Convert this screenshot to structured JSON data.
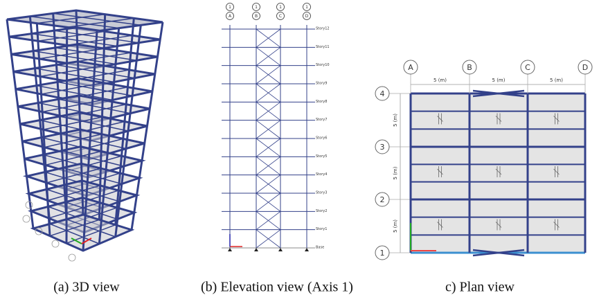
{
  "panels": [
    {
      "caption": "(a) 3D view"
    },
    {
      "caption": "(b) Elevation view (Axis 1)",
      "grid_labels": [
        [
          "1",
          "A"
        ],
        [
          "1",
          "B"
        ],
        [
          "1",
          "C"
        ],
        [
          "1",
          "D"
        ]
      ],
      "story_labels": [
        "Story12",
        "Story11",
        "Story10",
        "Story9",
        "Story8",
        "Story7",
        "Story6",
        "Story5",
        "Story4",
        "Story3",
        "Story2",
        "Story1",
        "Base"
      ]
    },
    {
      "caption": "c) Plan view",
      "column_labels": [
        "A",
        "B",
        "C",
        "D"
      ],
      "row_labels": [
        "4",
        "3",
        "2",
        "1"
      ],
      "span_labels": [
        "5 (m)",
        "5 (m)",
        "5 (m)"
      ],
      "bay_labels": [
        "5 (m)",
        "5 (m)",
        "5 (m)"
      ]
    }
  ]
}
